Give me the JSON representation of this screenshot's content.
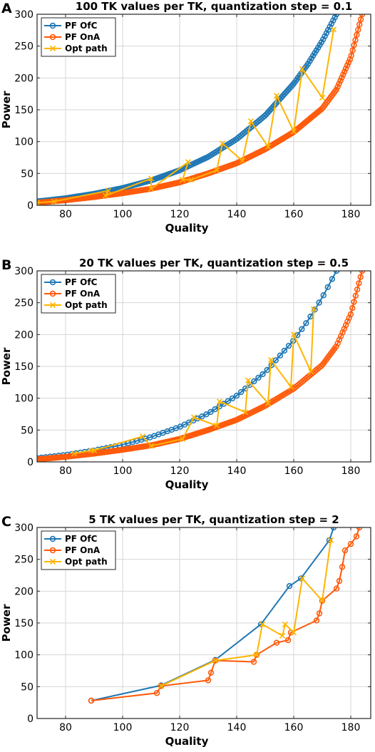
{
  "chart_data": [
    {
      "type": "line",
      "panel_label": "A",
      "title": "100 TK values per TK, quantization step = 0.1",
      "xlabel": "Quality",
      "ylabel": "Power",
      "xlim": [
        70,
        187
      ],
      "ylim": [
        0,
        300
      ],
      "xticks": [
        80,
        100,
        120,
        140,
        160,
        180
      ],
      "yticks": [
        0,
        50,
        100,
        150,
        200,
        250,
        300
      ],
      "grid": true,
      "legend_position": "top-left",
      "colors": {
        "ofc": "#1f77b4",
        "ona": "#ff5a0a",
        "opt": "#ffb400"
      },
      "series": [
        {
          "name": "PF OfC",
          "marker": "circle",
          "density": 180,
          "x": [
            70,
            80,
            90,
            100,
            110,
            120,
            130,
            140,
            150,
            160,
            165,
            170,
            175
          ],
          "y": [
            6,
            11,
            18,
            27,
            39,
            55,
            76,
            104,
            141,
            191,
            222,
            258,
            300
          ]
        },
        {
          "name": "PF OnA",
          "marker": "circle",
          "density": 240,
          "x": [
            70,
            80,
            90,
            100,
            110,
            120,
            130,
            140,
            150,
            160,
            170,
            175,
            180,
            184
          ],
          "y": [
            4,
            8,
            13,
            19,
            26,
            36,
            50,
            66,
            88,
            115,
            152,
            182,
            232,
            300
          ]
        },
        {
          "name": "Opt path",
          "marker": "x",
          "x": [
            70,
            76,
            95,
            94,
            110,
            110,
            123,
            121,
            124,
            133,
            135,
            142,
            145,
            151,
            154,
            160,
            163,
            170,
            174
          ],
          "y": [
            4,
            6,
            23,
            15,
            42,
            26,
            68,
            40,
            40,
            55,
            97,
            70,
            132,
            92,
            172,
            116,
            214,
            169,
            276
          ]
        }
      ]
    },
    {
      "type": "line",
      "panel_label": "B",
      "title": "20 TK values per TK, quantization step = 0.5",
      "xlabel": "Quality",
      "ylabel": "Power",
      "xlim": [
        70,
        187
      ],
      "ylim": [
        0,
        300
      ],
      "xticks": [
        80,
        100,
        120,
        140,
        160,
        180
      ],
      "yticks": [
        0,
        50,
        100,
        150,
        200,
        250,
        300
      ],
      "grid": true,
      "legend_position": "top-left",
      "colors": {
        "ofc": "#1f77b4",
        "ona": "#ff5a0a",
        "opt": "#ffb400"
      },
      "series": [
        {
          "name": "PF OfC",
          "marker": "circle",
          "density": 70,
          "x": [
            70,
            80,
            90,
            100,
            110,
            120,
            130,
            140,
            150,
            160,
            165,
            170,
            175
          ],
          "y": [
            6,
            11,
            18,
            27,
            39,
            55,
            76,
            104,
            141,
            191,
            222,
            258,
            300
          ]
        },
        {
          "name": "PF OnA",
          "marker": "circle",
          "density": 200,
          "x": [
            70,
            80,
            90,
            100,
            110,
            120,
            130,
            140,
            150,
            160,
            170,
            175,
            180,
            184
          ],
          "y": [
            4,
            8,
            13,
            19,
            26,
            36,
            50,
            66,
            88,
            115,
            152,
            182,
            232,
            300
          ]
        },
        {
          "name": "Opt path",
          "marker": "x",
          "x": [
            83,
            89,
            90,
            107,
            110,
            121,
            125,
            133,
            134,
            143,
            144,
            151,
            152,
            159,
            160,
            166,
            167
          ],
          "y": [
            13,
            18,
            18,
            40,
            25,
            36,
            70,
            57,
            95,
            78,
            128,
            92,
            160,
            118,
            200,
            142,
            240
          ]
        }
      ]
    },
    {
      "type": "line",
      "panel_label": "C",
      "title": "5 TK values per TK, quantization step = 2",
      "xlabel": "Quality",
      "ylabel": "Power",
      "xlim": [
        70,
        187
      ],
      "ylim": [
        0,
        300
      ],
      "xticks": [
        80,
        100,
        120,
        140,
        160,
        180
      ],
      "yticks": [
        0,
        50,
        100,
        150,
        200,
        250,
        300
      ],
      "grid": true,
      "legend_position": "top-left",
      "colors": {
        "ofc": "#1f77b4",
        "ona": "#ff5a0a",
        "opt": "#ffb400"
      },
      "series": [
        {
          "name": "PF OfC",
          "marker": "circle",
          "x": [
            89,
            113.5,
            132.5,
            148.5,
            158.5,
            162.5,
            172.5,
            174
          ],
          "y": [
            28,
            52,
            92,
            148,
            208,
            220,
            280,
            300
          ]
        },
        {
          "name": "PF OnA",
          "marker": "circle",
          "x": [
            89,
            112,
            113.5,
            130,
            131,
            132.5,
            146,
            147,
            154,
            158,
            159,
            168,
            169,
            170,
            175,
            176,
            177,
            178,
            180,
            182,
            183
          ],
          "y": [
            28,
            40,
            51,
            60,
            72,
            91,
            89,
            100,
            119,
            123,
            135,
            154,
            165,
            185,
            204,
            216,
            238,
            264,
            274,
            286,
            300
          ]
        },
        {
          "name": "Opt path",
          "marker": "x",
          "x": [
            113.5,
            132.5,
            147,
            149,
            156,
            157,
            160,
            163,
            170,
            173
          ],
          "y": [
            51,
            91,
            100,
            148,
            130,
            148,
            135,
            220,
            185,
            280
          ]
        }
      ]
    }
  ]
}
